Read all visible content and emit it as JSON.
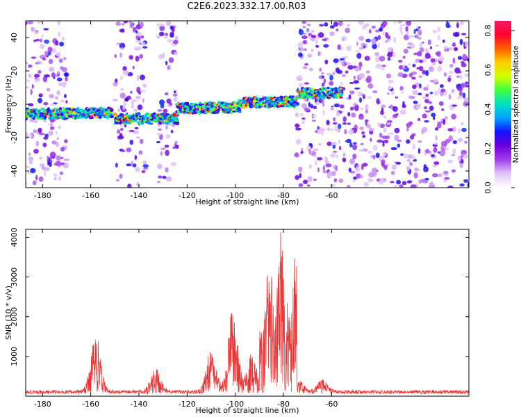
{
  "title": "C2E6.2023.332.17.00.R03",
  "chart_data": [
    {
      "type": "heatmap",
      "xlabel": "Height of straight line (km)",
      "ylabel": "Frequency (Hz)",
      "xlim": [
        -187,
        -3
      ],
      "ylim": [
        -50,
        50
      ],
      "x_ticks": [
        -180,
        -160,
        -140,
        -120,
        -100,
        -80,
        -60
      ],
      "y_ticks": [
        -40,
        -20,
        0,
        20,
        40
      ],
      "colorbar": {
        "label": "Normalized spectral amplitude",
        "range": [
          0.0,
          0.85
        ],
        "ticks": [
          0.0,
          0.2,
          0.4,
          0.6,
          0.8
        ],
        "colormap": [
          "#ffffff",
          "#e2c6f8",
          "#a040e8",
          "#7000e0",
          "#1010ff",
          "#00a0ff",
          "#00e0c0",
          "#40ff40",
          "#d0ff00",
          "#ffd000",
          "#ff6000",
          "#ff0030",
          "#f01a60"
        ]
      },
      "signal_band": {
        "segments": [
          {
            "x_range": [
              -187,
              -151
            ],
            "frequency_hz": -5
          },
          {
            "x_range": [
              -150,
              -124
            ],
            "frequency_hz": -9
          },
          {
            "x_range": [
              -124,
              -98
            ],
            "frequency_hz": -3
          },
          {
            "x_range": [
              -98,
              -75
            ],
            "frequency_hz": 0
          },
          {
            "x_range": [
              -74,
              -56
            ],
            "frequency_hz": 5
          }
        ],
        "noise_regions": [
          [
            -187,
            -170
          ],
          [
            -150,
            -137
          ],
          [
            -132,
            -124
          ],
          [
            -75,
            -3
          ]
        ]
      }
    },
    {
      "type": "line",
      "color": "#ee3333",
      "xlabel": "Height of straight line (km)",
      "ylabel": "SNR (10 * v/v)",
      "xlim": [
        -187,
        -3
      ],
      "ylim": [
        0,
        4200
      ],
      "x_ticks": [
        -180,
        -160,
        -140,
        -120,
        -100,
        -80,
        -60
      ],
      "y_ticks": [
        1000,
        2000,
        3000,
        4000
      ],
      "baseline": 150,
      "peaks": [
        {
          "x": -158,
          "y": 1600
        },
        {
          "x": -133,
          "y": 750
        },
        {
          "x": -110,
          "y": 1200
        },
        {
          "x": -101,
          "y": 2250
        },
        {
          "x": -93,
          "y": 1100
        },
        {
          "x": -86,
          "y": 3800
        },
        {
          "x": -81,
          "y": 4200
        },
        {
          "x": -75,
          "y": 3750
        },
        {
          "x": -64,
          "y": 450
        }
      ]
    }
  ]
}
